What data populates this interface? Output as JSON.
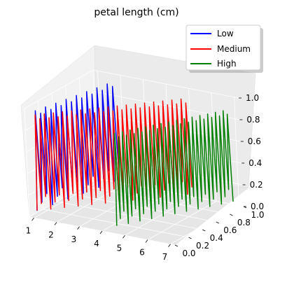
{
  "chart_data": {
    "type": "line",
    "projection": "3d",
    "title": "petal length (cm)",
    "xlabel": "",
    "ylabel": "",
    "zlabel": "",
    "xlim": [
      0.8,
      7.2
    ],
    "ylim": [
      0,
      1
    ],
    "zlim": [
      0,
      1
    ],
    "x_ticks": [
      "1",
      "2",
      "3",
      "4",
      "5",
      "6",
      "7"
    ],
    "y_ticks": [
      "0.0",
      "0.2",
      "0.4",
      "0.6",
      "0.8",
      "1.0"
    ],
    "z_ticks": [
      "0.0",
      "0.2",
      "0.4",
      "0.6",
      "0.8",
      "1.0"
    ],
    "grid": true,
    "legend_position": "top-right",
    "series": [
      {
        "name": "Low",
        "color": "#0000ff",
        "x_range": [
          1.0,
          1.9
        ],
        "cycles": 16,
        "z_min": 0.05,
        "z_max": 0.98
      },
      {
        "name": "Medium",
        "color": "#ff0000",
        "x_range": [
          1.0,
          5.1
        ],
        "cycles": 34,
        "z_min": 0.05,
        "z_max": 0.95
      },
      {
        "name": "High",
        "color": "#008000",
        "x_range": [
          4.5,
          6.9
        ],
        "cycles": 30,
        "z_min": 0.05,
        "z_max": 0.92
      }
    ]
  }
}
